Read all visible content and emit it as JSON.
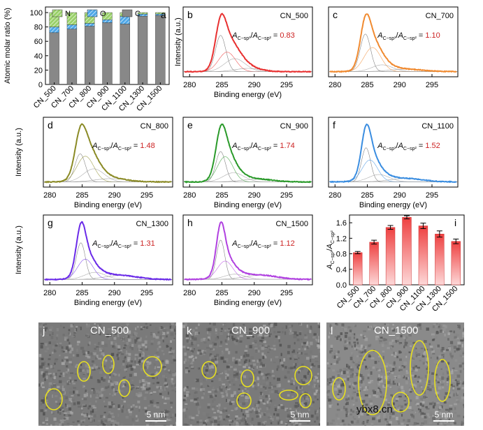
{
  "colors": {
    "N": "#9ad16a",
    "O": "#4fa8e8",
    "C": "#888888",
    "b": "#e83030",
    "c": "#f08a30",
    "d": "#8a8a25",
    "e": "#2a9a2a",
    "f": "#3a8de0",
    "g": "#6a2ae8",
    "h": "#b040e0",
    "i": "#f07070",
    "ratio": "#cc2222"
  },
  "ratio_template": {
    "base": "A",
    "sub1": "C−sp³",
    "sub2": "C−sp²"
  },
  "chart_data": [
    {
      "panel": "a",
      "type": "bar",
      "stacked": true,
      "categories": [
        "CN_500",
        "CN_700",
        "CN_800",
        "CN_900",
        "CN_1100",
        "CN_1300",
        "CN_1500"
      ],
      "series": [
        {
          "name": "C",
          "values": [
            72,
            77,
            81,
            86,
            84,
            95,
            96
          ]
        },
        {
          "name": "O",
          "values": [
            8,
            6,
            4,
            4,
            11,
            3,
            2
          ]
        },
        {
          "name": "N",
          "values": [
            20,
            17,
            15,
            10,
            5,
            2,
            2
          ]
        }
      ],
      "ylabel": "Atomic molar ratio (%)",
      "ylim": [
        0,
        100
      ],
      "yticks": [
        "0",
        "20",
        "40",
        "60",
        "80",
        "100"
      ],
      "legend": [
        "N",
        "O",
        "C"
      ],
      "label": "a"
    },
    {
      "panel": "b",
      "type": "line",
      "title": "CN_500",
      "label": "b",
      "ratio": "0.83",
      "color_key": "b",
      "xlabel": "Binding energy (eV)",
      "ylabel": "Intensity (a.u.)",
      "xlim": [
        279,
        299
      ],
      "xticks": [
        "280",
        "285",
        "290",
        "295"
      ],
      "peaks": [
        {
          "center": 284.8,
          "height": 0.78,
          "width": 0.8
        },
        {
          "center": 285.8,
          "height": 0.42,
          "width": 1.3
        },
        {
          "center": 287.0,
          "height": 0.28,
          "width": 1.6
        },
        {
          "center": 289.0,
          "height": 0.07,
          "width": 2.0
        }
      ]
    },
    {
      "panel": "c",
      "type": "line",
      "title": "CN_700",
      "label": "c",
      "ratio": "1.10",
      "color_key": "c",
      "xlim": [
        279,
        299
      ],
      "xticks": [
        "280",
        "285",
        "290",
        "295"
      ],
      "peaks": [
        {
          "center": 284.7,
          "height": 0.78,
          "width": 0.8
        },
        {
          "center": 285.8,
          "height": 0.5,
          "width": 1.3
        },
        {
          "center": 287.3,
          "height": 0.14,
          "width": 1.6
        },
        {
          "center": 291.0,
          "height": 0.05,
          "width": 2.5
        }
      ]
    },
    {
      "panel": "d",
      "type": "line",
      "title": "CN_800",
      "label": "d",
      "ratio": "1.48",
      "color_key": "d",
      "xlabel": "Binding energy (eV)",
      "ylabel": "Intensity (a.u.)",
      "xlim": [
        279,
        299
      ],
      "xticks": [
        "280",
        "285",
        "290",
        "295"
      ],
      "peaks": [
        {
          "center": 284.7,
          "height": 0.6,
          "width": 0.8
        },
        {
          "center": 285.5,
          "height": 0.55,
          "width": 1.3
        },
        {
          "center": 286.8,
          "height": 0.28,
          "width": 1.6
        },
        {
          "center": 289.5,
          "height": 0.07,
          "width": 2.5
        }
      ]
    },
    {
      "panel": "e",
      "type": "line",
      "title": "CN_900",
      "label": "e",
      "ratio": "1.74",
      "color_key": "e",
      "xlabel": "Binding energy (eV)",
      "xlim": [
        279,
        299
      ],
      "xticks": [
        "280",
        "285",
        "290",
        "295"
      ],
      "peaks": [
        {
          "center": 284.8,
          "height": 0.66,
          "width": 0.75
        },
        {
          "center": 285.5,
          "height": 0.55,
          "width": 1.2
        },
        {
          "center": 286.8,
          "height": 0.2,
          "width": 1.6
        },
        {
          "center": 290.5,
          "height": 0.06,
          "width": 2.5
        }
      ]
    },
    {
      "panel": "f",
      "type": "line",
      "title": "CN_1100",
      "label": "f",
      "ratio": "1.52",
      "color_key": "f",
      "xlabel": "Binding energy (eV)",
      "xlim": [
        279,
        299
      ],
      "xticks": [
        "280",
        "285",
        "290",
        "295"
      ],
      "peaks": [
        {
          "center": 284.8,
          "height": 0.7,
          "width": 0.7
        },
        {
          "center": 285.4,
          "height": 0.45,
          "width": 1.2
        },
        {
          "center": 286.8,
          "height": 0.15,
          "width": 1.6
        },
        {
          "center": 291.0,
          "height": 0.07,
          "width": 2.5
        }
      ]
    },
    {
      "panel": "g",
      "type": "line",
      "title": "CN_1300",
      "label": "g",
      "ratio": "1.31",
      "color_key": "g",
      "xlabel": "Binding energy (eV)",
      "ylabel": "Intensity (a.u.)",
      "xlim": [
        279,
        299
      ],
      "xticks": [
        "280",
        "285",
        "290",
        "295"
      ],
      "peaks": [
        {
          "center": 284.8,
          "height": 0.72,
          "width": 0.7
        },
        {
          "center": 285.5,
          "height": 0.4,
          "width": 1.2
        },
        {
          "center": 287.0,
          "height": 0.14,
          "width": 1.6
        },
        {
          "center": 291.0,
          "height": 0.08,
          "width": 2.5
        }
      ]
    },
    {
      "panel": "h",
      "type": "line",
      "title": "CN_1500",
      "label": "h",
      "ratio": "1.12",
      "color_key": "h",
      "xlabel": "Binding energy (eV)",
      "xlim": [
        279,
        299
      ],
      "xticks": [
        "280",
        "285",
        "290",
        "295"
      ],
      "peaks": [
        {
          "center": 284.8,
          "height": 0.75,
          "width": 0.65
        },
        {
          "center": 285.5,
          "height": 0.35,
          "width": 1.2
        },
        {
          "center": 287.0,
          "height": 0.1,
          "width": 1.6
        },
        {
          "center": 291.0,
          "height": 0.08,
          "width": 2.5
        }
      ]
    },
    {
      "panel": "i",
      "type": "bar",
      "label": "i",
      "categories": [
        "CN_500",
        "CN_700",
        "CN_800",
        "CN_900",
        "CN_1100",
        "CN_1300",
        "CN_1500"
      ],
      "values": [
        0.83,
        1.1,
        1.48,
        1.74,
        1.52,
        1.31,
        1.12
      ],
      "errors": [
        0.03,
        0.05,
        0.05,
        0.04,
        0.07,
        0.08,
        0.06
      ],
      "ylim": [
        0,
        1.8
      ],
      "yticks": [
        "0.0",
        "0.4",
        "0.8",
        "1.2",
        "1.6"
      ]
    }
  ],
  "tem": [
    {
      "label": "j",
      "title": "CN_500",
      "scale": "5 nm"
    },
    {
      "label": "k",
      "title": "CN_900",
      "scale": "5 nm"
    },
    {
      "label": "l",
      "title": "CN_1500",
      "scale": "5 nm"
    }
  ],
  "watermark": "ybx8.cn"
}
